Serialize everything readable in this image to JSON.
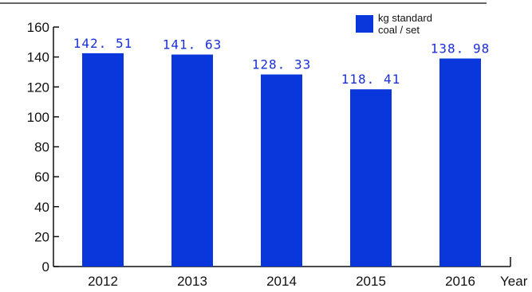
{
  "chart_data": {
    "type": "bar",
    "categories": [
      "2012",
      "2013",
      "2014",
      "2015",
      "2016"
    ],
    "values": [
      142.51,
      141.63,
      128.33,
      118.41,
      138.98
    ],
    "value_labels": [
      "142. 51",
      "141. 63",
      "128. 33",
      "118. 41",
      "138. 98"
    ],
    "series": [
      {
        "name": "kg standard coal / set",
        "values": [
          142.51,
          141.63,
          128.33,
          118.41,
          138.98
        ]
      }
    ],
    "legend": {
      "line1": "kg standard",
      "line2": "coal / set",
      "position": "top-right"
    },
    "xlabel": "Year",
    "ylabel": "",
    "ylim": [
      0,
      160
    ],
    "yticks": [
      0,
      20,
      40,
      60,
      80,
      100,
      120,
      140,
      160
    ],
    "grid": false,
    "bar_color": "#0a37dc",
    "label_color": "#1a2fd6"
  }
}
